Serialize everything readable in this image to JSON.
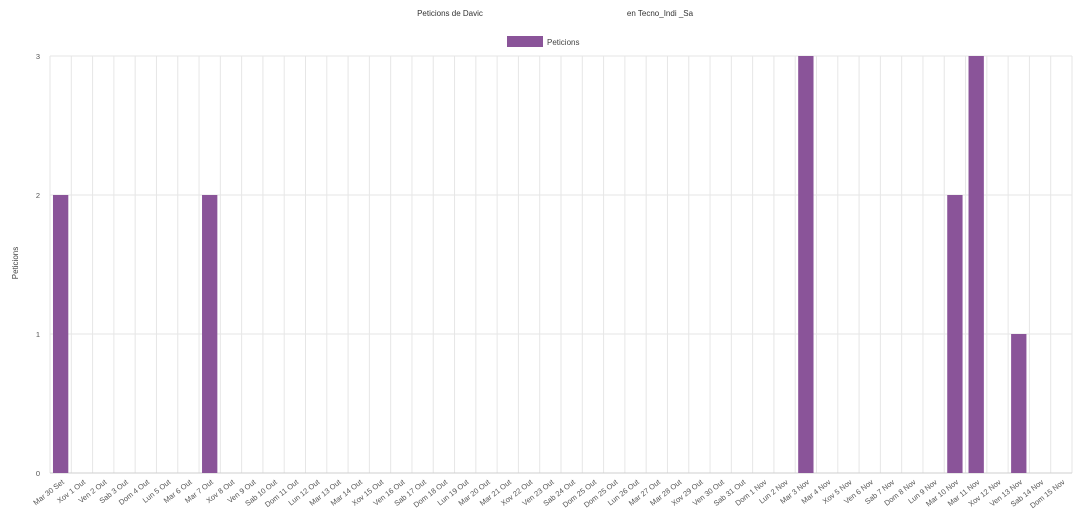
{
  "chart_data": {
    "type": "bar",
    "title": "Peticions de Davic",
    "subtitle": "en Tecno_Indi _Sa",
    "ylabel": "Peticions",
    "xlabel": "",
    "ylim": [
      0,
      3
    ],
    "yticks": [
      0,
      1,
      2,
      3
    ],
    "grid": true,
    "legend_position": "top-center",
    "color": "#8a5499",
    "categories": [
      "Mar 30 Set",
      "Xov 1 Out",
      "Ven 2 Out",
      "Sab 3 Out",
      "Dom 4 Out",
      "Lun 5 Out",
      "Mar 6 Out",
      "Mar 7 Out",
      "Xov 8 Out",
      "Ven 9 Out",
      "Sab 10 Out",
      "Dom 11 Out",
      "Lun 12 Out",
      "Mar 13 Out",
      "Mar 14 Out",
      "Xov 15 Out",
      "Ven 16 Out",
      "Sab 17 Out",
      "Dom 18 Out",
      "Lun 19 Out",
      "Mar 20 Out",
      "Mar 21 Out",
      "Xov 22 Out",
      "Ven 23 Out",
      "Sab 24 Out",
      "Dom 25 Out",
      "Dom 25 Out",
      "Lun 26 Out",
      "Mar 27 Out",
      "Mar 28 Out",
      "Xov 29 Out",
      "Ven 30 Out",
      "Sab 31 Out",
      "Dom 1 Nov",
      "Lun 2 Nov",
      "Mar 3 Nov",
      "Mar 4 Nov",
      "Xov 5 Nov",
      "Ven 6 Nov",
      "Sab 7 Nov",
      "Dom 8 Nov",
      "Lun 9 Nov",
      "Mar 10 Nov",
      "Mar 11 Nov",
      "Xov 12 Nov",
      "Ven 13 Nov",
      "Sab 14 Nov",
      "Dom 15 Nov"
    ],
    "series": [
      {
        "name": "Peticions",
        "values": [
          2,
          0,
          0,
          0,
          0,
          0,
          0,
          2,
          0,
          0,
          0,
          0,
          0,
          0,
          0,
          0,
          0,
          0,
          0,
          0,
          0,
          0,
          0,
          0,
          0,
          0,
          0,
          0,
          0,
          0,
          0,
          0,
          0,
          0,
          0,
          3,
          0,
          0,
          0,
          0,
          0,
          0,
          2,
          3,
          0,
          1,
          0,
          0
        ]
      }
    ]
  }
}
